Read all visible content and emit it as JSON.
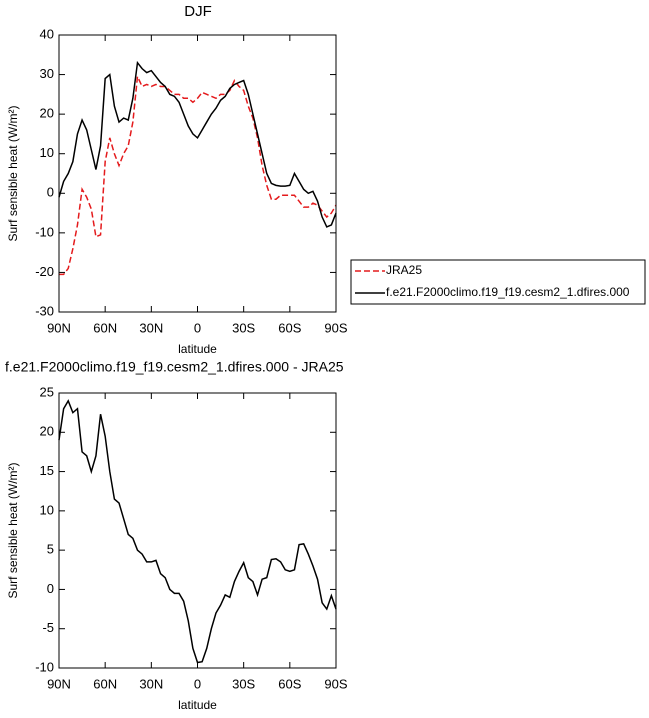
{
  "chart_data": [
    {
      "type": "line",
      "title": "DJF",
      "xlabel": "latitude",
      "ylabel": "Surf sensible heat (W/m²)",
      "x": [
        90,
        87,
        84,
        81,
        78,
        75,
        72,
        69,
        66,
        63,
        60,
        57,
        54,
        51,
        48,
        45,
        42,
        39,
        36,
        33,
        30,
        27,
        24,
        21,
        18,
        15,
        12,
        9,
        6,
        3,
        0,
        -3,
        -6,
        -9,
        -12,
        -15,
        -18,
        -21,
        -24,
        -27,
        -30,
        -33,
        -36,
        -39,
        -42,
        -45,
        -48,
        -51,
        -54,
        -57,
        -60,
        -63,
        -66,
        -69,
        -72,
        -75,
        -78,
        -81,
        -84,
        -87,
        -90
      ],
      "xlim": [
        90,
        -90
      ],
      "xticks": [
        {
          "value": 90,
          "label": "90N"
        },
        {
          "value": 60,
          "label": "60N"
        },
        {
          "value": 30,
          "label": "30N"
        },
        0,
        {
          "value": -30,
          "label": "30S"
        },
        {
          "value": -60,
          "label": "60S"
        },
        {
          "value": -90,
          "label": "90S"
        }
      ],
      "ylim": [
        -30,
        40
      ],
      "yticks": [
        -30,
        -20,
        -10,
        0,
        10,
        20,
        30,
        40
      ],
      "legend": "outside-right",
      "series": [
        {
          "name": "JRA25",
          "color": "#e41a1c",
          "linestyle": "dashed",
          "values": [
            -20.5,
            -20.5,
            -19,
            -14,
            -8,
            1,
            -1,
            -4,
            -11,
            -10.5,
            8,
            14,
            10,
            7,
            10,
            12,
            18,
            29.5,
            27,
            27.5,
            27,
            27.5,
            27,
            27,
            26,
            25,
            25,
            24,
            24,
            23,
            24,
            25.5,
            25,
            24.5,
            24,
            25,
            25,
            26,
            28.5,
            27,
            26,
            22,
            19,
            14,
            7,
            2,
            -1.5,
            -1.5,
            -0.5,
            -0.5,
            -0.5,
            -0.5,
            -2,
            -3.5,
            -3.5,
            -2.5,
            -3,
            -4.5,
            -6,
            -5,
            -3
          ]
        },
        {
          "name": "f.e21.F2000climo.f19_f19.cesm2_1.dfires.000",
          "color": "#000000",
          "linestyle": "solid",
          "values": [
            -1,
            3,
            5,
            8,
            15,
            18.5,
            16,
            11,
            6,
            12,
            29,
            30,
            22,
            18,
            19,
            18.5,
            24,
            33,
            31.5,
            30.5,
            31,
            29.5,
            28,
            27,
            25,
            24.5,
            23,
            20,
            17,
            15,
            14,
            16,
            18,
            20,
            21.5,
            23.5,
            24.5,
            26.5,
            27.5,
            28,
            28.5,
            25,
            20,
            15,
            10,
            5,
            2.5,
            2,
            1.8,
            1.8,
            2,
            5,
            3,
            1,
            0,
            0.5,
            -2,
            -6,
            -8.5,
            -8,
            -5
          ]
        }
      ]
    },
    {
      "type": "line",
      "title": "f.e21.F2000climo.f19_f19.cesm2_1.dfires.000 - JRA25",
      "xlabel": "latitude",
      "ylabel": "Surf sensible heat (W/m²)",
      "x": [
        90,
        87,
        84,
        81,
        78,
        75,
        72,
        69,
        66,
        63,
        60,
        57,
        54,
        51,
        48,
        45,
        42,
        39,
        36,
        33,
        30,
        27,
        24,
        21,
        18,
        15,
        12,
        9,
        6,
        3,
        0,
        -3,
        -6,
        -9,
        -12,
        -15,
        -18,
        -21,
        -24,
        -27,
        -30,
        -33,
        -36,
        -39,
        -42,
        -45,
        -48,
        -51,
        -54,
        -57,
        -60,
        -63,
        -66,
        -69,
        -72,
        -75,
        -78,
        -81,
        -84,
        -87,
        -90
      ],
      "xlim": [
        90,
        -90
      ],
      "xticks": [
        {
          "value": 90,
          "label": "90N"
        },
        {
          "value": 60,
          "label": "60N"
        },
        {
          "value": 30,
          "label": "30N"
        },
        0,
        {
          "value": -30,
          "label": "30S"
        },
        {
          "value": -60,
          "label": "60S"
        },
        {
          "value": -90,
          "label": "90S"
        }
      ],
      "ylim": [
        -10,
        25
      ],
      "yticks": [
        -10,
        -5,
        0,
        5,
        10,
        15,
        20,
        25
      ],
      "series": [
        {
          "color": "#000000",
          "linestyle": "solid",
          "values": [
            19,
            23,
            24,
            22.5,
            23,
            17.5,
            17,
            15,
            17,
            22.3,
            19.5,
            15,
            11.5,
            11,
            9,
            7,
            6.5,
            5,
            4.5,
            3.5,
            3.5,
            3.7,
            2,
            1.5,
            0,
            -0.5,
            -0.5,
            -1.5,
            -4,
            -7.5,
            -9.3,
            -9.2,
            -7.5,
            -5,
            -3,
            -2,
            -0.7,
            -1,
            1,
            2.3,
            3.4,
            1.5,
            1,
            -0.7,
            1.3,
            1.5,
            3.8,
            3.9,
            3.5,
            2.5,
            2.3,
            2.5,
            5.7,
            5.8,
            4.5,
            3,
            1.3,
            -1.7,
            -2.5,
            -0.8,
            -2.5
          ]
        }
      ]
    }
  ]
}
